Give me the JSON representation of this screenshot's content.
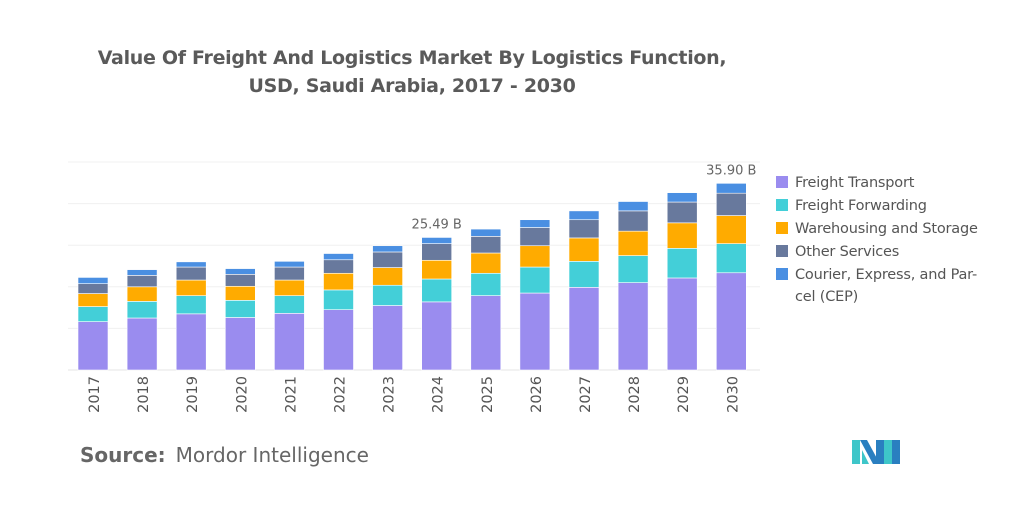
{
  "chart_data": {
    "type": "bar",
    "stacked": true,
    "title": "Value Of Freight And Logistics Market By Logistics Function, USD, Saudi Arabia, 2017 - 2030",
    "title_lines": [
      "Value Of Freight And Logistics Market By Logistics Function,",
      "USD, Saudi Arabia, 2017 - 2030"
    ],
    "xlabel": "",
    "ylabel": "",
    "ylim": [
      0,
      40
    ],
    "grid": true,
    "legend_position": "right",
    "categories": [
      "2017",
      "2018",
      "2019",
      "2020",
      "2021",
      "2022",
      "2023",
      "2024",
      "2025",
      "2026",
      "2027",
      "2028",
      "2029",
      "2030"
    ],
    "series": [
      {
        "name": "Freight Transport",
        "color": "#9a8cef",
        "values": [
          9.3,
          10.0,
          10.8,
          10.1,
          10.9,
          11.6,
          12.4,
          13.1,
          14.3,
          14.8,
          15.9,
          16.8,
          17.7,
          18.7
        ]
      },
      {
        "name": "Freight Forwarding",
        "color": "#43cfd8",
        "values": [
          2.9,
          3.2,
          3.5,
          3.3,
          3.4,
          3.8,
          3.9,
          4.4,
          4.3,
          5.0,
          5.0,
          5.2,
          5.7,
          5.6
        ]
      },
      {
        "name": "Warehousing and Storage",
        "color": "#ffab00",
        "values": [
          2.5,
          2.8,
          3.0,
          2.7,
          3.0,
          3.2,
          3.4,
          3.6,
          3.9,
          4.1,
          4.5,
          4.7,
          4.9,
          5.4
        ]
      },
      {
        "name": "Other Services",
        "color": "#68799d",
        "values": [
          1.9,
          2.2,
          2.5,
          2.3,
          2.5,
          2.6,
          3.0,
          3.2,
          3.2,
          3.5,
          3.5,
          3.9,
          4.0,
          4.3
        ]
      },
      {
        "name": "Courier, Express, and Parcel (CEP)",
        "color": "#4a8fe2",
        "values": [
          1.2,
          1.1,
          1.0,
          1.1,
          1.1,
          1.2,
          1.2,
          1.19,
          1.4,
          1.5,
          1.7,
          1.8,
          1.8,
          1.9
        ]
      }
    ],
    "legend_labels": [
      "Freight Transport",
      "Freight Forwarding",
      "Warehousing and Storage",
      "Other Services",
      "Courier, Express, and Par-cel (CEP)"
    ],
    "annotations": [
      {
        "category": "2024",
        "text": "25.49 B"
      },
      {
        "category": "2030",
        "text": "35.90 B"
      }
    ]
  },
  "source": {
    "label": "Source:",
    "value": "Mordor Intelligence"
  },
  "logo": {
    "name": "Mordor Intelligence logo",
    "colors": [
      "#2a7fc0",
      "#3ec6c9"
    ]
  }
}
